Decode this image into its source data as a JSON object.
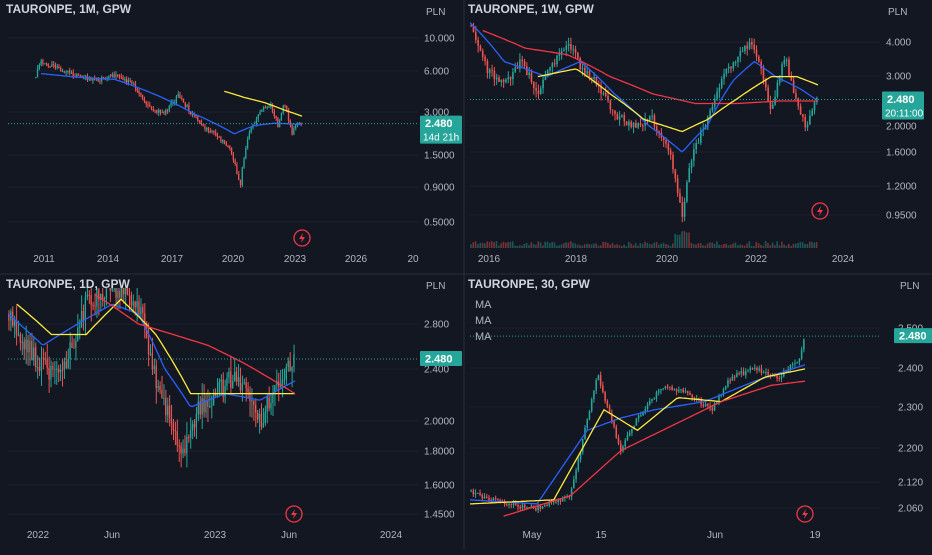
{
  "colors": {
    "bg": "#131722",
    "grid": "#1e222d",
    "text": "#d1d4dc",
    "axis": "#b2b5be",
    "up": "#26a69a",
    "down": "#ef5350",
    "ma_blue": "#2962ff",
    "ma_red": "#f23645",
    "ma_yellow": "#ffeb3b",
    "price_line": "#26a69a",
    "divider": "#2a2e39"
  },
  "icons": [
    "lightning-icon"
  ],
  "chart_data": [
    {
      "type": "candlestick",
      "symbol": "TAURONPE, 1M, GPW",
      "currency": "PLN",
      "scale": "log",
      "price_label": "2.480",
      "countdown": "14d 21h",
      "y_ticks": [
        "10.000",
        "6.000",
        "3.000",
        "1.5000",
        "0.9000",
        "0.5000"
      ],
      "x_ticks": [
        "2011",
        "2014",
        "2017",
        "2020",
        "2023",
        "2026",
        "20"
      ],
      "ylim": [
        0.42,
        14
      ],
      "current_price": 2.48,
      "price_path": [
        [
          2010.0,
          5.2
        ],
        [
          2010.3,
          6.8
        ],
        [
          2011.0,
          6.2
        ],
        [
          2012.0,
          5.4
        ],
        [
          2013.0,
          5.0
        ],
        [
          2014.0,
          5.5
        ],
        [
          2015.0,
          4.6
        ],
        [
          2015.7,
          3.2
        ],
        [
          2016.5,
          2.9
        ],
        [
          2017.2,
          3.9
        ],
        [
          2017.8,
          3.0
        ],
        [
          2018.6,
          2.3
        ],
        [
          2019.2,
          2.0
        ],
        [
          2019.8,
          1.6
        ],
        [
          2020.3,
          0.9
        ],
        [
          2020.8,
          2.2
        ],
        [
          2021.3,
          3.0
        ],
        [
          2021.8,
          3.4
        ],
        [
          2022.2,
          2.4
        ],
        [
          2022.5,
          3.5
        ],
        [
          2022.9,
          2.1
        ],
        [
          2023.2,
          2.6
        ],
        [
          2023.4,
          2.48
        ]
      ],
      "ma_series": [
        {
          "color": "#2962ff",
          "path": [
            [
              2010.3,
              5.6
            ],
            [
              2012.0,
              5.3
            ],
            [
              2014.0,
              5.1
            ],
            [
              2016.0,
              4.0
            ],
            [
              2018.0,
              2.9
            ],
            [
              2020.0,
              2.1
            ],
            [
              2021.0,
              2.4
            ],
            [
              2022.0,
              2.5
            ],
            [
              2023.4,
              2.45
            ]
          ]
        },
        {
          "color": "#ffeb3b",
          "path": [
            [
              2019.5,
              4.2
            ],
            [
              2020.5,
              3.8
            ],
            [
              2021.5,
              3.5
            ],
            [
              2022.5,
              3.1
            ],
            [
              2023.4,
              2.8
            ]
          ]
        }
      ]
    },
    {
      "type": "candlestick",
      "symbol": "TAURONPE, 1W, GPW",
      "currency": "PLN",
      "scale": "log",
      "price_label": "2.480",
      "countdown": "20:11:00",
      "y_ticks": [
        "4.000",
        "3.000",
        "2.0000",
        "1.6000",
        "1.2000",
        "0.9500"
      ],
      "x_ticks": [
        "2016",
        "2018",
        "2020",
        "2022",
        "2024"
      ],
      "ylim": [
        0.85,
        5.0
      ],
      "current_price": 2.48,
      "volume": true,
      "price_path": [
        [
          2015.2,
          4.6
        ],
        [
          2015.6,
          3.2
        ],
        [
          2016.0,
          2.8
        ],
        [
          2016.4,
          3.4
        ],
        [
          2016.8,
          2.6
        ],
        [
          2017.3,
          3.6
        ],
        [
          2017.5,
          4.0
        ],
        [
          2017.8,
          3.3
        ],
        [
          2018.2,
          2.8
        ],
        [
          2018.6,
          2.2
        ],
        [
          2019.0,
          2.0
        ],
        [
          2019.5,
          2.1
        ],
        [
          2019.9,
          1.6
        ],
        [
          2020.2,
          0.9
        ],
        [
          2020.4,
          1.5
        ],
        [
          2020.8,
          2.1
        ],
        [
          2021.2,
          3.1
        ],
        [
          2021.5,
          3.5
        ],
        [
          2021.8,
          4.0
        ],
        [
          2022.0,
          3.4
        ],
        [
          2022.3,
          2.2
        ],
        [
          2022.6,
          3.6
        ],
        [
          2022.9,
          2.4
        ],
        [
          2023.1,
          2.0
        ],
        [
          2023.4,
          2.48
        ]
      ],
      "ma_series": [
        {
          "color": "#2962ff",
          "path": [
            [
              2015.2,
              4.7
            ],
            [
              2016.0,
              3.4
            ],
            [
              2017.0,
              3.0
            ],
            [
              2017.8,
              3.4
            ],
            [
              2018.6,
              2.6
            ],
            [
              2019.4,
              2.0
            ],
            [
              2020.2,
              1.6
            ],
            [
              2020.8,
              2.0
            ],
            [
              2021.4,
              2.9
            ],
            [
              2021.9,
              3.4
            ],
            [
              2022.4,
              3.0
            ],
            [
              2023.0,
              2.7
            ],
            [
              2023.4,
              2.45
            ]
          ]
        },
        {
          "color": "#f23645",
          "path": [
            [
              2015.5,
              4.4
            ],
            [
              2016.5,
              3.8
            ],
            [
              2017.5,
              3.6
            ],
            [
              2018.5,
              3.0
            ],
            [
              2019.5,
              2.6
            ],
            [
              2020.5,
              2.4
            ],
            [
              2021.5,
              2.4
            ],
            [
              2022.5,
              2.45
            ],
            [
              2023.4,
              2.45
            ]
          ]
        },
        {
          "color": "#ffeb3b",
          "path": [
            [
              2016.8,
              3.0
            ],
            [
              2017.7,
              3.2
            ],
            [
              2018.5,
              2.6
            ],
            [
              2019.3,
              2.1
            ],
            [
              2020.2,
              1.9
            ],
            [
              2020.8,
              2.1
            ],
            [
              2021.5,
              2.5
            ],
            [
              2022.3,
              3.0
            ],
            [
              2022.9,
              3.0
            ],
            [
              2023.4,
              2.8
            ]
          ]
        }
      ]
    },
    {
      "type": "candlestick",
      "symbol": "TAURONPE, 1D, GPW",
      "currency": "PLN",
      "scale": "log",
      "price_label": "2.480",
      "y_ticks": [
        "2.800",
        "2.400",
        "2.0000",
        "1.8000",
        "1.6000",
        "1.4500"
      ],
      "x_ticks": [
        "2022",
        "Jun",
        "2023",
        "Jun",
        "2024"
      ],
      "ylim": [
        1.35,
        3.15
      ],
      "current_price": 2.48,
      "price_path": [
        [
          2021.85,
          2.9
        ],
        [
          2022.0,
          2.5
        ],
        [
          2022.15,
          2.3
        ],
        [
          2022.3,
          3.0
        ],
        [
          2022.45,
          3.2
        ],
        [
          2022.6,
          3.0
        ],
        [
          2022.7,
          2.3
        ],
        [
          2022.85,
          1.75
        ],
        [
          2022.95,
          2.1
        ],
        [
          2023.05,
          2.2
        ],
        [
          2023.15,
          2.35
        ],
        [
          2023.3,
          2.0
        ],
        [
          2023.4,
          2.25
        ],
        [
          2023.5,
          2.48
        ]
      ],
      "ma_series": [
        {
          "color": "#2962ff",
          "path": [
            [
              2021.85,
              2.9
            ],
            [
              2022.05,
              2.6
            ],
            [
              2022.25,
              2.8
            ],
            [
              2022.45,
              3.0
            ],
            [
              2022.6,
              2.9
            ],
            [
              2022.75,
              2.4
            ],
            [
              2022.9,
              2.1
            ],
            [
              2023.1,
              2.2
            ],
            [
              2023.3,
              2.15
            ],
            [
              2023.5,
              2.3
            ]
          ]
        },
        {
          "color": "#ffeb3b",
          "path": [
            [
              2021.9,
              3.0
            ],
            [
              2022.1,
              2.7
            ],
            [
              2022.3,
              2.7
            ],
            [
              2022.5,
              3.05
            ],
            [
              2022.7,
              2.7
            ],
            [
              2022.9,
              2.2
            ],
            [
              2023.1,
              2.2
            ],
            [
              2023.3,
              2.2
            ],
            [
              2023.5,
              2.2
            ]
          ]
        },
        {
          "color": "#f23645",
          "path": [
            [
              2022.35,
              3.1
            ],
            [
              2022.6,
              2.8
            ],
            [
              2022.8,
              2.7
            ],
            [
              2023.0,
              2.6
            ],
            [
              2023.2,
              2.45
            ],
            [
              2023.5,
              2.2
            ]
          ]
        }
      ]
    },
    {
      "type": "candlestick",
      "symbol": "TAURONPE, 30, GPW",
      "currency": "PLN",
      "scale": "linear",
      "price_label": "2.480",
      "legend": [
        "MA",
        "MA",
        "MA"
      ],
      "y_ticks": [
        "2.500",
        "2.400",
        "2.300",
        "2.200",
        "2.120",
        "2.060"
      ],
      "x_ticks": [
        "May",
        "15",
        "Jun",
        "19"
      ],
      "ylim": [
        2.03,
        2.53
      ],
      "current_price": 2.48,
      "price_path": [
        [
          0.0,
          2.1
        ],
        [
          0.1,
          2.07
        ],
        [
          0.2,
          2.06
        ],
        [
          0.3,
          2.09
        ],
        [
          0.38,
          2.39
        ],
        [
          0.45,
          2.2
        ],
        [
          0.5,
          2.28
        ],
        [
          0.58,
          2.36
        ],
        [
          0.65,
          2.34
        ],
        [
          0.72,
          2.3
        ],
        [
          0.78,
          2.38
        ],
        [
          0.85,
          2.4
        ],
        [
          0.92,
          2.38
        ],
        [
          0.98,
          2.42
        ],
        [
          1.0,
          2.48
        ]
      ],
      "ma_series": [
        {
          "color": "#2962ff",
          "path": [
            [
              0.0,
              2.08
            ],
            [
              0.2,
              2.07
            ],
            [
              0.35,
              2.25
            ],
            [
              0.45,
              2.28
            ],
            [
              0.55,
              2.3
            ],
            [
              0.7,
              2.32
            ],
            [
              0.85,
              2.37
            ],
            [
              1.0,
              2.41
            ]
          ]
        },
        {
          "color": "#ffeb3b",
          "path": [
            [
              0.0,
              2.07
            ],
            [
              0.25,
              2.08
            ],
            [
              0.4,
              2.3
            ],
            [
              0.5,
              2.25
            ],
            [
              0.62,
              2.33
            ],
            [
              0.75,
              2.32
            ],
            [
              0.88,
              2.38
            ],
            [
              1.0,
              2.4
            ]
          ]
        },
        {
          "color": "#f23645",
          "path": [
            [
              0.1,
              2.04
            ],
            [
              0.3,
              2.09
            ],
            [
              0.45,
              2.2
            ],
            [
              0.6,
              2.26
            ],
            [
              0.75,
              2.32
            ],
            [
              0.9,
              2.36
            ],
            [
              1.0,
              2.37
            ]
          ]
        }
      ]
    }
  ]
}
